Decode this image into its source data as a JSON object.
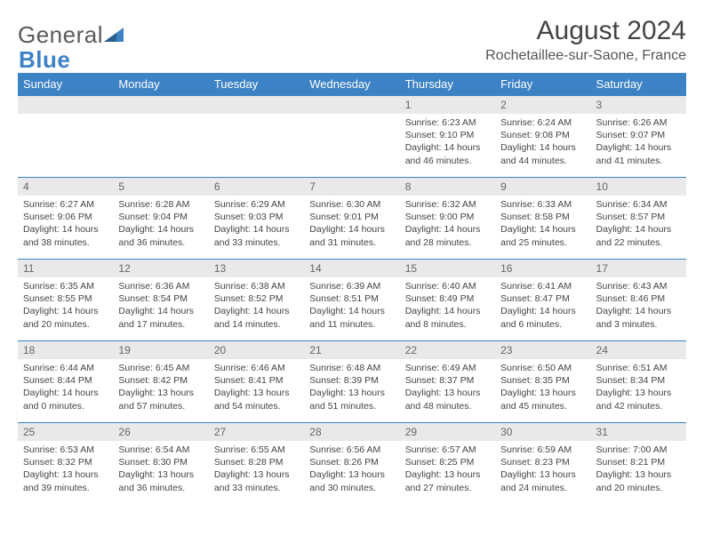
{
  "brand": {
    "part1": "General",
    "part2": "Blue"
  },
  "title": "August 2024",
  "location": "Rochetaillee-sur-Saone, France",
  "colors": {
    "header_bg": "#3d82c4",
    "header_text": "#ffffff",
    "daynum_bg": "#e9e9e9",
    "border": "#3d82c4"
  },
  "daysOfWeek": [
    "Sunday",
    "Monday",
    "Tuesday",
    "Wednesday",
    "Thursday",
    "Friday",
    "Saturday"
  ],
  "weeks": [
    [
      null,
      null,
      null,
      null,
      {
        "n": "1",
        "sunrise": "6:23 AM",
        "sunset": "9:10 PM",
        "daylight": "14 hours and 46 minutes."
      },
      {
        "n": "2",
        "sunrise": "6:24 AM",
        "sunset": "9:08 PM",
        "daylight": "14 hours and 44 minutes."
      },
      {
        "n": "3",
        "sunrise": "6:26 AM",
        "sunset": "9:07 PM",
        "daylight": "14 hours and 41 minutes."
      }
    ],
    [
      {
        "n": "4",
        "sunrise": "6:27 AM",
        "sunset": "9:06 PM",
        "daylight": "14 hours and 38 minutes."
      },
      {
        "n": "5",
        "sunrise": "6:28 AM",
        "sunset": "9:04 PM",
        "daylight": "14 hours and 36 minutes."
      },
      {
        "n": "6",
        "sunrise": "6:29 AM",
        "sunset": "9:03 PM",
        "daylight": "14 hours and 33 minutes."
      },
      {
        "n": "7",
        "sunrise": "6:30 AM",
        "sunset": "9:01 PM",
        "daylight": "14 hours and 31 minutes."
      },
      {
        "n": "8",
        "sunrise": "6:32 AM",
        "sunset": "9:00 PM",
        "daylight": "14 hours and 28 minutes."
      },
      {
        "n": "9",
        "sunrise": "6:33 AM",
        "sunset": "8:58 PM",
        "daylight": "14 hours and 25 minutes."
      },
      {
        "n": "10",
        "sunrise": "6:34 AM",
        "sunset": "8:57 PM",
        "daylight": "14 hours and 22 minutes."
      }
    ],
    [
      {
        "n": "11",
        "sunrise": "6:35 AM",
        "sunset": "8:55 PM",
        "daylight": "14 hours and 20 minutes."
      },
      {
        "n": "12",
        "sunrise": "6:36 AM",
        "sunset": "8:54 PM",
        "daylight": "14 hours and 17 minutes."
      },
      {
        "n": "13",
        "sunrise": "6:38 AM",
        "sunset": "8:52 PM",
        "daylight": "14 hours and 14 minutes."
      },
      {
        "n": "14",
        "sunrise": "6:39 AM",
        "sunset": "8:51 PM",
        "daylight": "14 hours and 11 minutes."
      },
      {
        "n": "15",
        "sunrise": "6:40 AM",
        "sunset": "8:49 PM",
        "daylight": "14 hours and 8 minutes."
      },
      {
        "n": "16",
        "sunrise": "6:41 AM",
        "sunset": "8:47 PM",
        "daylight": "14 hours and 6 minutes."
      },
      {
        "n": "17",
        "sunrise": "6:43 AM",
        "sunset": "8:46 PM",
        "daylight": "14 hours and 3 minutes."
      }
    ],
    [
      {
        "n": "18",
        "sunrise": "6:44 AM",
        "sunset": "8:44 PM",
        "daylight": "14 hours and 0 minutes."
      },
      {
        "n": "19",
        "sunrise": "6:45 AM",
        "sunset": "8:42 PM",
        "daylight": "13 hours and 57 minutes."
      },
      {
        "n": "20",
        "sunrise": "6:46 AM",
        "sunset": "8:41 PM",
        "daylight": "13 hours and 54 minutes."
      },
      {
        "n": "21",
        "sunrise": "6:48 AM",
        "sunset": "8:39 PM",
        "daylight": "13 hours and 51 minutes."
      },
      {
        "n": "22",
        "sunrise": "6:49 AM",
        "sunset": "8:37 PM",
        "daylight": "13 hours and 48 minutes."
      },
      {
        "n": "23",
        "sunrise": "6:50 AM",
        "sunset": "8:35 PM",
        "daylight": "13 hours and 45 minutes."
      },
      {
        "n": "24",
        "sunrise": "6:51 AM",
        "sunset": "8:34 PM",
        "daylight": "13 hours and 42 minutes."
      }
    ],
    [
      {
        "n": "25",
        "sunrise": "6:53 AM",
        "sunset": "8:32 PM",
        "daylight": "13 hours and 39 minutes."
      },
      {
        "n": "26",
        "sunrise": "6:54 AM",
        "sunset": "8:30 PM",
        "daylight": "13 hours and 36 minutes."
      },
      {
        "n": "27",
        "sunrise": "6:55 AM",
        "sunset": "8:28 PM",
        "daylight": "13 hours and 33 minutes."
      },
      {
        "n": "28",
        "sunrise": "6:56 AM",
        "sunset": "8:26 PM",
        "daylight": "13 hours and 30 minutes."
      },
      {
        "n": "29",
        "sunrise": "6:57 AM",
        "sunset": "8:25 PM",
        "daylight": "13 hours and 27 minutes."
      },
      {
        "n": "30",
        "sunrise": "6:59 AM",
        "sunset": "8:23 PM",
        "daylight": "13 hours and 24 minutes."
      },
      {
        "n": "31",
        "sunrise": "7:00 AM",
        "sunset": "8:21 PM",
        "daylight": "13 hours and 20 minutes."
      }
    ]
  ],
  "labels": {
    "sunrise": "Sunrise:",
    "sunset": "Sunset:",
    "daylight": "Daylight:"
  }
}
